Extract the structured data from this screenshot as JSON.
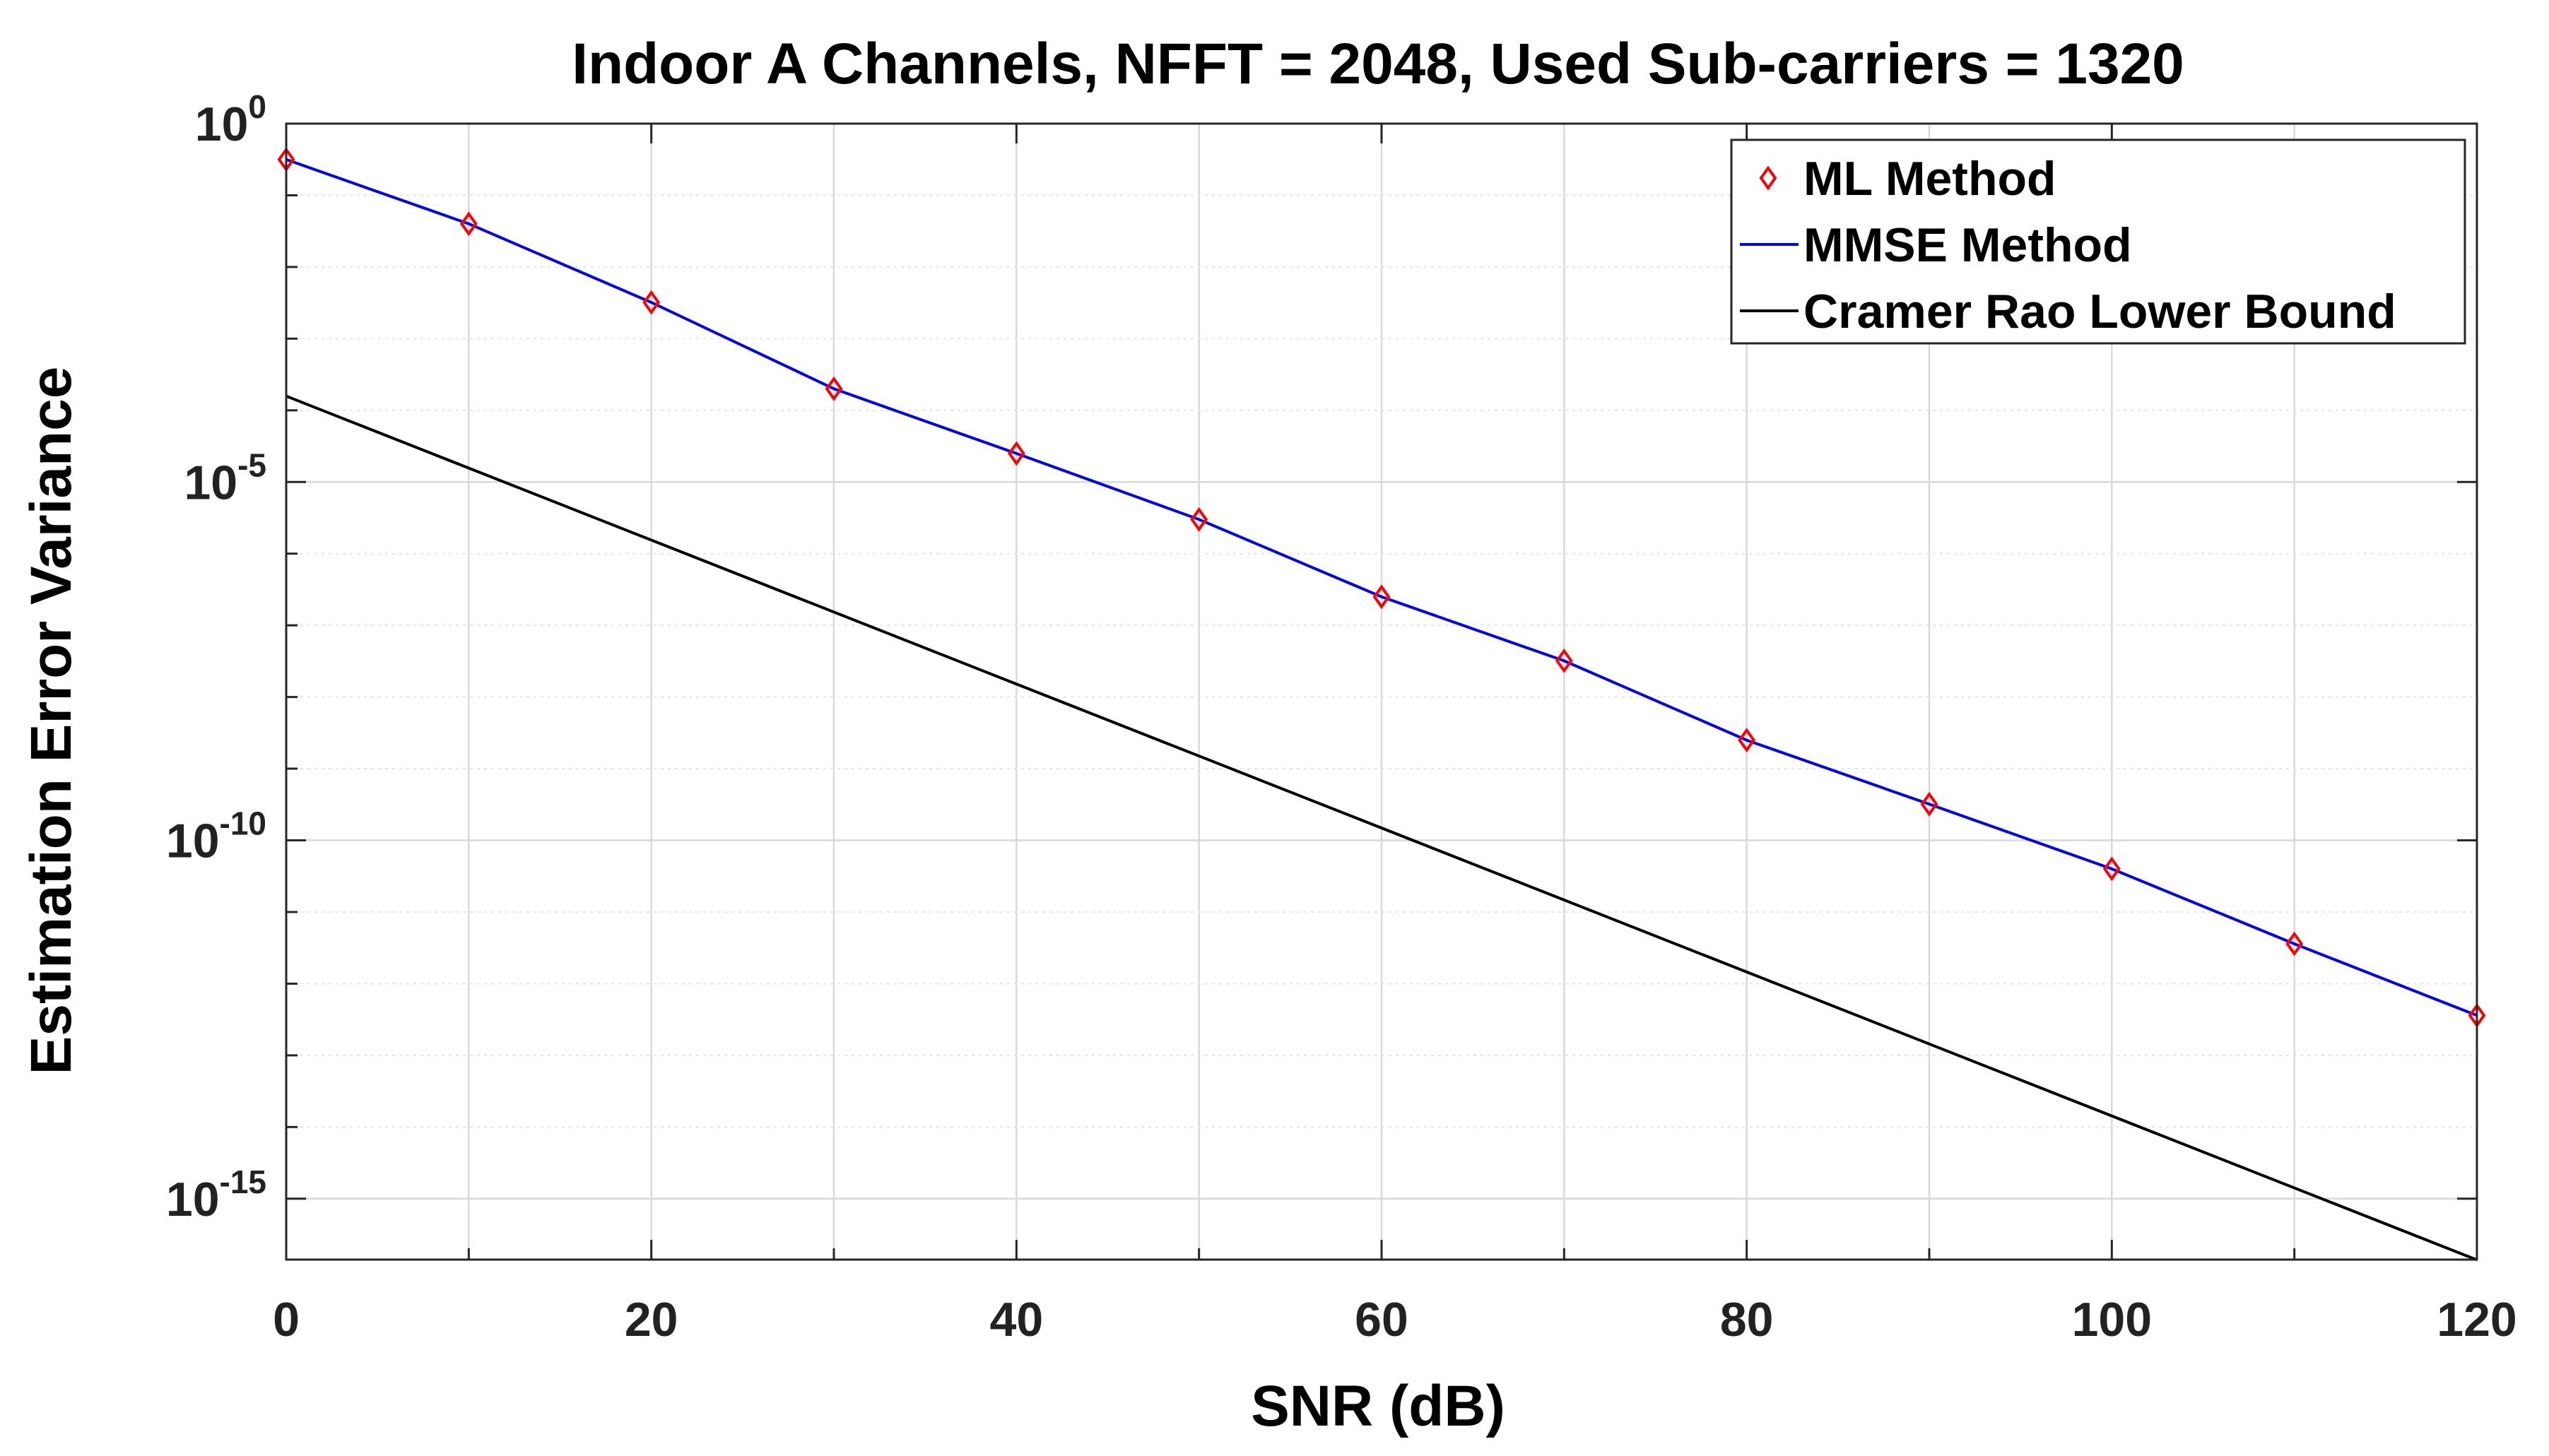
{
  "chart_data": {
    "type": "line",
    "title": "Indoor A Channels, NFFT = 2048, Used Sub-carriers = 1320",
    "xlabel": "SNR (dB)",
    "ylabel": "Estimation Error Variance",
    "xlim": [
      0,
      120
    ],
    "ylim_log10": [
      -15.85,
      0
    ],
    "yscale": "log",
    "grid": true,
    "legend_position": "top-right",
    "x_ticks": [
      "0",
      "20",
      "40",
      "60",
      "80",
      "100",
      "120"
    ],
    "y_ticks": [
      {
        "base": "10",
        "exp": "0",
        "log10": 0
      },
      {
        "base": "10",
        "exp": "-5",
        "log10": -5
      },
      {
        "base": "10",
        "exp": "-10",
        "log10": -10
      },
      {
        "base": "10",
        "exp": "-15",
        "log10": -15
      }
    ],
    "series": [
      {
        "name": "ML Method",
        "style": "markers",
        "marker": "diamond",
        "color": "#ff0000",
        "x": [
          0,
          10,
          20,
          30,
          40,
          50,
          60,
          70,
          80,
          90,
          100,
          110,
          120
        ],
        "y": [
          0.316,
          0.04,
          0.0032,
          0.0002,
          2.5e-05,
          3e-06,
          2.5e-07,
          3.2e-08,
          2.5e-09,
          3.2e-10,
          4e-11,
          3.6e-12,
          3.6e-13
        ]
      },
      {
        "name": "MMSE Method",
        "style": "line",
        "color": "#0000ff",
        "x": [
          0,
          10,
          20,
          30,
          40,
          50,
          60,
          70,
          80,
          90,
          100,
          110,
          120
        ],
        "y": [
          0.316,
          0.04,
          0.0032,
          0.0002,
          2.5e-05,
          3e-06,
          2.5e-07,
          3.2e-08,
          2.5e-09,
          3.2e-10,
          4e-11,
          3.6e-12,
          3.6e-13
        ]
      },
      {
        "name": "Cramer Rao Lower Bound",
        "style": "line",
        "color": "#000000",
        "x": [
          0,
          120
        ],
        "y": [
          0.000158,
          1.4e-16
        ]
      }
    ]
  }
}
